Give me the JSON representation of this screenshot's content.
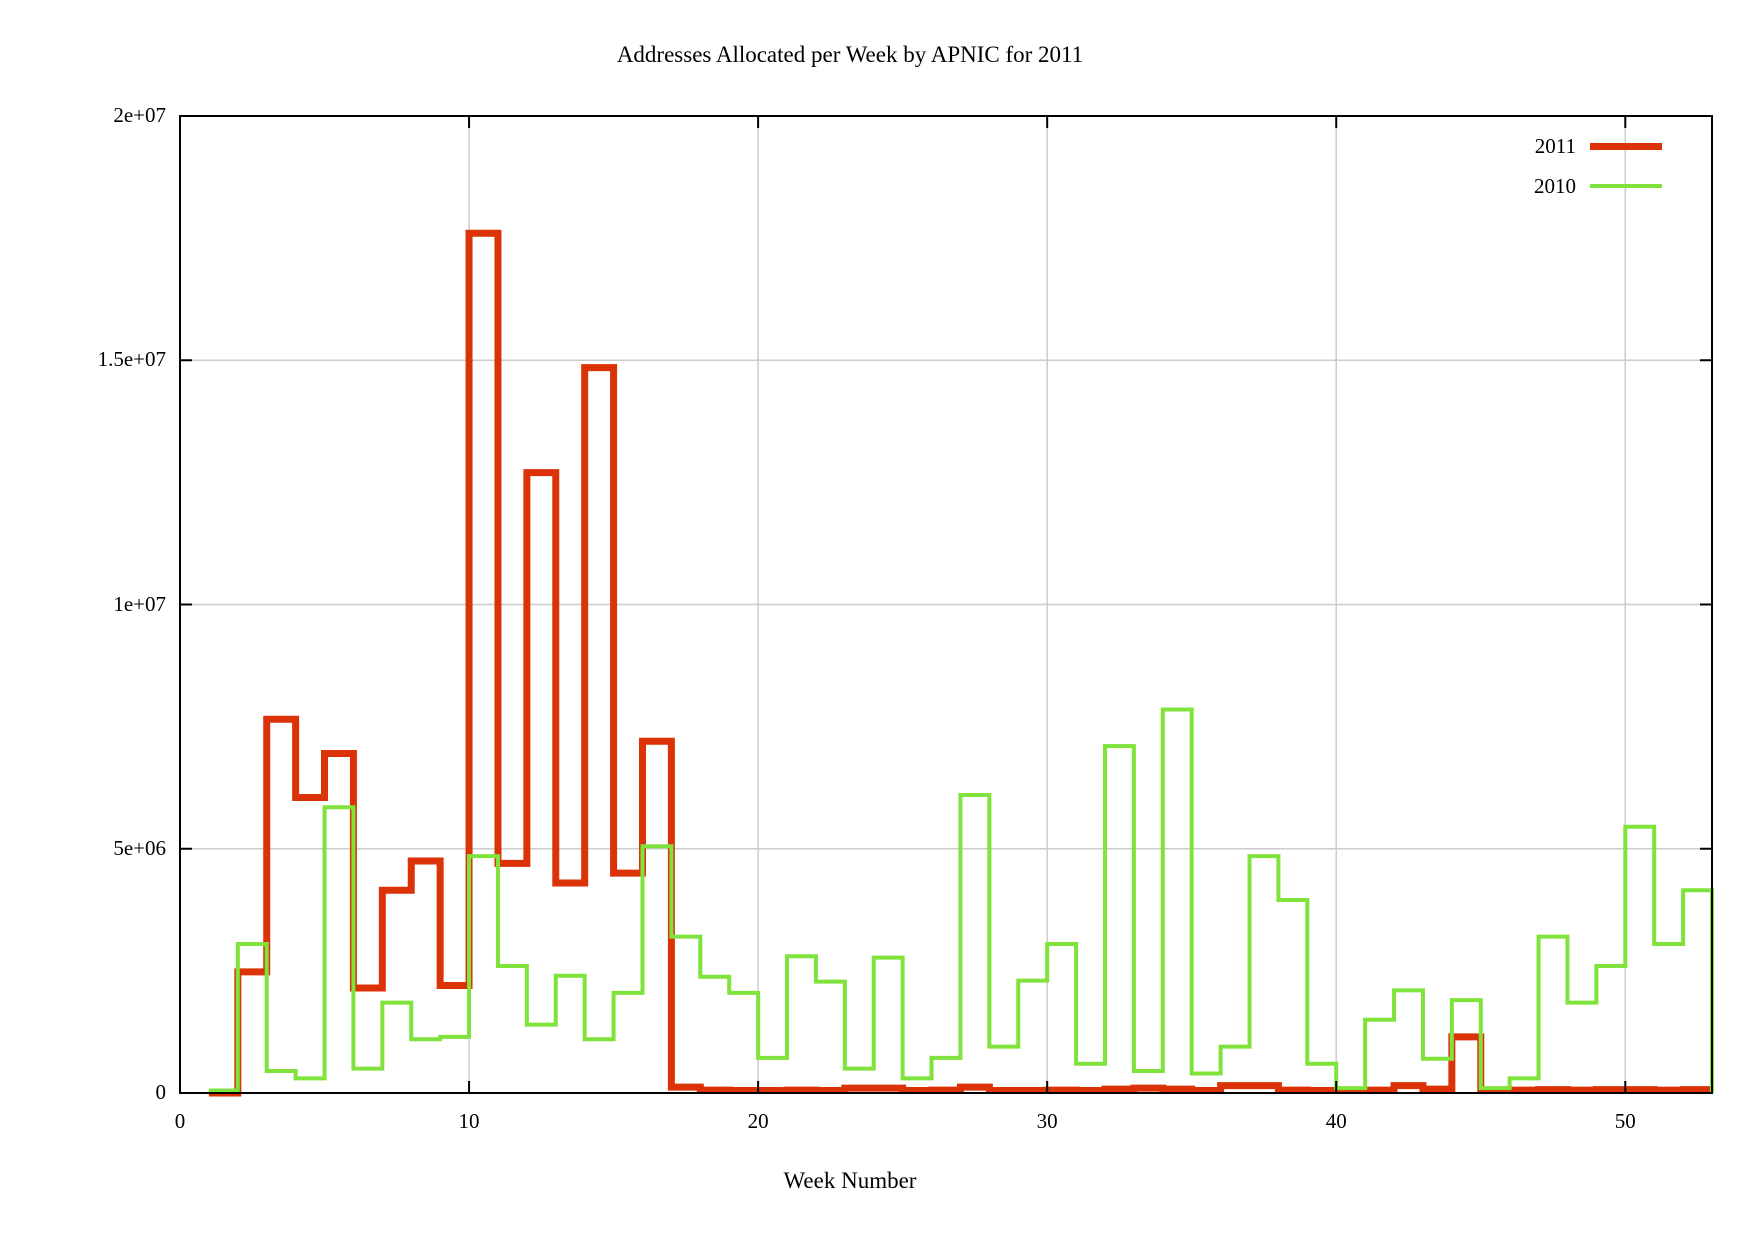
{
  "title": "Addresses Allocated per Week by APNIC for 2011",
  "colors": {
    "series_2011": "#dc3208",
    "series_2010": "#7fe33c",
    "grid": "#cccccc",
    "axis": "#000000",
    "background": "#ffffff"
  },
  "legend": {
    "entries": [
      {
        "label": "2011",
        "color_key": "series_2011",
        "sample_thickness": 7
      },
      {
        "label": "2010",
        "color_key": "series_2010",
        "sample_thickness": 4
      }
    ]
  },
  "axes": {
    "x": {
      "label": "Week Number",
      "min": 0,
      "max": 53,
      "ticks": [
        {
          "value": 0,
          "label": "0"
        },
        {
          "value": 10,
          "label": "10"
        },
        {
          "value": 20,
          "label": "20"
        },
        {
          "value": 30,
          "label": "30"
        },
        {
          "value": 40,
          "label": "40"
        },
        {
          "value": 50,
          "label": "50"
        }
      ]
    },
    "y": {
      "label": "",
      "min": 0,
      "max": 20000000,
      "ticks": [
        {
          "value": 0,
          "label": "0"
        },
        {
          "value": 5000000,
          "label": "5e+06"
        },
        {
          "value": 10000000,
          "label": "1e+07"
        },
        {
          "value": 15000000,
          "label": "1.5e+07"
        },
        {
          "value": 20000000,
          "label": "2e+07"
        }
      ]
    }
  },
  "chart_data": {
    "type": "line",
    "style": "steps",
    "title": "Addresses Allocated per Week by APNIC for 2011",
    "xlabel": "Week Number",
    "ylabel": "",
    "xlim": [
      0,
      53
    ],
    "ylim": [
      0,
      20000000
    ],
    "grid": true,
    "legend_position": "top-right-inside",
    "x_weeks": [
      1,
      2,
      3,
      4,
      5,
      6,
      7,
      8,
      9,
      10,
      11,
      12,
      13,
      14,
      15,
      16,
      17,
      18,
      19,
      20,
      21,
      22,
      23,
      24,
      25,
      26,
      27,
      28,
      29,
      30,
      31,
      32,
      33,
      34,
      35,
      36,
      37,
      38,
      39,
      40,
      41,
      42,
      43,
      44,
      45,
      46,
      47,
      48,
      49,
      50,
      51,
      52
    ],
    "series": [
      {
        "name": "2011",
        "color_key": "series_2011",
        "line_width": 7,
        "drop_to_zero_at_end": false,
        "values": [
          0,
          2480000,
          7650000,
          6050000,
          6950000,
          2150000,
          4150000,
          4750000,
          2200000,
          17600000,
          4700000,
          12700000,
          4300000,
          14850000,
          4500000,
          7200000,
          120000,
          60000,
          50000,
          50000,
          60000,
          50000,
          100000,
          100000,
          50000,
          60000,
          120000,
          50000,
          50000,
          60000,
          50000,
          80000,
          100000,
          80000,
          50000,
          150000,
          150000,
          60000,
          50000,
          50000,
          60000,
          150000,
          80000,
          1150000,
          50000,
          60000,
          70000,
          60000,
          70000,
          70000,
          60000,
          70000
        ]
      },
      {
        "name": "2010",
        "color_key": "series_2010",
        "line_width": 4,
        "drop_to_zero_at_end": true,
        "values": [
          50000,
          3050000,
          450000,
          300000,
          5850000,
          500000,
          1850000,
          1100000,
          1150000,
          4850000,
          2600000,
          1400000,
          2400000,
          1100000,
          2050000,
          5050000,
          3200000,
          2380000,
          2050000,
          720000,
          2800000,
          2280000,
          500000,
          2770000,
          300000,
          720000,
          6100000,
          950000,
          2300000,
          3050000,
          600000,
          7100000,
          450000,
          7850000,
          400000,
          950000,
          4850000,
          3950000,
          600000,
          100000,
          1500000,
          2100000,
          700000,
          1900000,
          100000,
          300000,
          3200000,
          1850000,
          2600000,
          5450000,
          3050000,
          4150000
        ]
      }
    ]
  }
}
